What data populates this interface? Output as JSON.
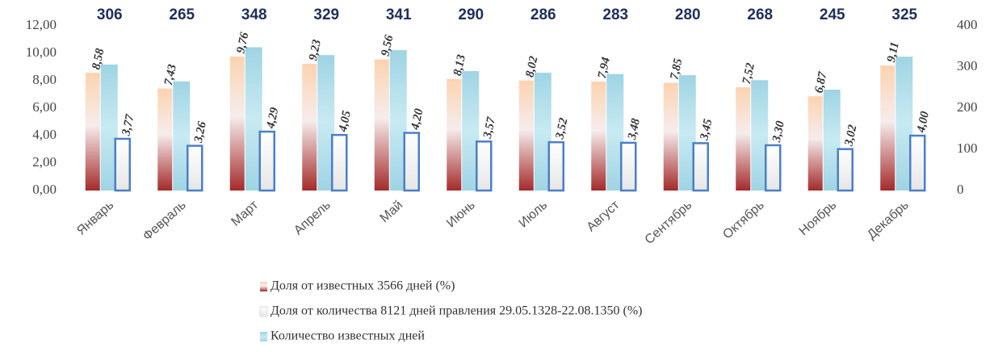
{
  "chart_data": {
    "type": "bar",
    "categories": [
      "Январь",
      "Февраль",
      "Март",
      "Апрель",
      "Май",
      "Июнь",
      "Июль",
      "Август",
      "Сентябрь",
      "Октябрь",
      "Ноябрь",
      "Декабрь"
    ],
    "series": [
      {
        "name": "Доля от известных 3566 дней (%)",
        "color": "#a52a2a",
        "values": [
          8.58,
          7.43,
          9.76,
          9.23,
          9.56,
          8.13,
          8.02,
          7.94,
          7.85,
          7.52,
          6.87,
          9.11
        ],
        "value_labels": [
          "8,58",
          "7,43",
          "9,76",
          "9,23",
          "9,56",
          "8,13",
          "8,02",
          "7,94",
          "7,85",
          "7,52",
          "6,87",
          "9,11"
        ]
      },
      {
        "name": "Доля от количества 8121 дней правления 29.05.1328-22.08.1350 (%)",
        "color": "#e6e6e6",
        "values": [
          3.77,
          3.26,
          4.29,
          4.05,
          4.2,
          3.57,
          3.52,
          3.48,
          3.45,
          3.3,
          3.02,
          4.0
        ],
        "value_labels": [
          "3,77",
          "3,26",
          "4,29",
          "4,05",
          "4,20",
          "3,57",
          "3,52",
          "3,48",
          "3,45",
          "3,30",
          "3,02",
          "4,00"
        ]
      },
      {
        "name": "Количество известных дней",
        "color": "#9fd4e4",
        "axis": "y2",
        "values": [
          306,
          265,
          348,
          329,
          341,
          290,
          286,
          283,
          280,
          268,
          245,
          325
        ]
      }
    ],
    "ylim": [
      0,
      12
    ],
    "yticks": [
      {
        "value": 0,
        "label": "0,00"
      },
      {
        "value": 2,
        "label": "2,00"
      },
      {
        "value": 4,
        "label": "4,00"
      },
      {
        "value": 6,
        "label": "6,00"
      },
      {
        "value": 8,
        "label": "8,00"
      },
      {
        "value": 10,
        "label": "10,00"
      },
      {
        "value": 12,
        "label": "12,00"
      }
    ],
    "y2lim": [
      0,
      400
    ],
    "y2ticks": [
      0,
      100,
      200,
      300,
      400
    ]
  }
}
